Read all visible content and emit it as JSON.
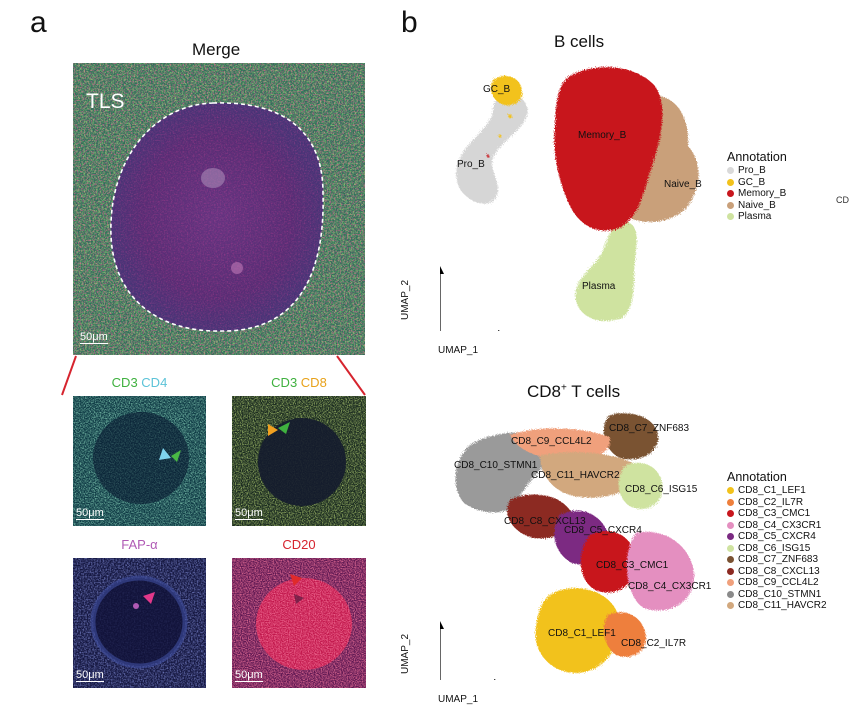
{
  "panel_a": {
    "letter": "a",
    "merge_title": "Merge",
    "tls_label": "TLS",
    "scale_bar": "50μm",
    "small_panels": [
      {
        "title_parts": [
          {
            "text": "CD3 ",
            "color": "#3fb13f"
          },
          {
            "text": "CD4",
            "color": "#5cc3d8"
          }
        ]
      },
      {
        "title_parts": [
          {
            "text": "CD3 ",
            "color": "#3fb13f"
          },
          {
            "text": "CD8",
            "color": "#e8a21a"
          }
        ]
      },
      {
        "title_parts": [
          {
            "text": "FAP-α",
            "color": "#b05ab5"
          }
        ]
      },
      {
        "title_parts": [
          {
            "text": "CD20",
            "color": "#d6242e"
          }
        ]
      }
    ]
  },
  "panel_b": {
    "letter": "b",
    "bcells": {
      "title": "B cells",
      "clusters": [
        "GC_B",
        "Pro_B",
        "Memory_B",
        "Naive_B",
        "Plasma"
      ],
      "legend_title": "Annotation",
      "legend": [
        {
          "label": "Pro_B",
          "color": "#d9d9d9"
        },
        {
          "label": "GC_B",
          "color": "#f2c21b"
        },
        {
          "label": "Memory_B",
          "color": "#c8161d"
        },
        {
          "label": "Naive_B",
          "color": "#c9a07a"
        },
        {
          "label": "Plasma",
          "color": "#cfe3a0"
        }
      ],
      "xlabel": "UMAP_1",
      "ylabel": "UMAP_2"
    },
    "cd8": {
      "title_main": "CD8",
      "title_sup": "+",
      "title_rest": " T cells",
      "clusters": [
        "CD8_C7_ZNF683",
        "CD8_C9_CCL4L2",
        "CD8_C10_STMN1",
        "CD8_C11_HAVCR2",
        "CD8_C6_ISG15",
        "CD8_C8_CXCL13",
        "CD8_C5_CXCR4",
        "CD8_C3_CMC1",
        "CD8_C4_CX3CR1",
        "CD8_C1_LEF1",
        "CD8_C2_IL7R"
      ],
      "legend_title": "Annotation",
      "legend": [
        {
          "label": "CD8_C1_LEF1",
          "color": "#f2c21b"
        },
        {
          "label": "CD8_C2_IL7R",
          "color": "#ee7f3c"
        },
        {
          "label": "CD8_C3_CMC1",
          "color": "#c8161d"
        },
        {
          "label": "CD8_C4_CX3CR1",
          "color": "#e48fc0"
        },
        {
          "label": "CD8_C5_CXCR4",
          "color": "#7b2a82"
        },
        {
          "label": "CD8_C6_ISG15",
          "color": "#cfe3a0"
        },
        {
          "label": "CD8_C7_ZNF683",
          "color": "#7a5232"
        },
        {
          "label": "CD8_C8_CXCL13",
          "color": "#8c2a22"
        },
        {
          "label": "CD8_C9_CCL4L2",
          "color": "#f0a07c"
        },
        {
          "label": "CD8_C10_STMN1",
          "color": "#8a8a8a"
        },
        {
          "label": "CD8_C11_HAVCR2",
          "color": "#d2a87e"
        }
      ],
      "xlabel": "UMAP_1",
      "ylabel": "UMAP_2"
    },
    "edge_text": "CD"
  }
}
